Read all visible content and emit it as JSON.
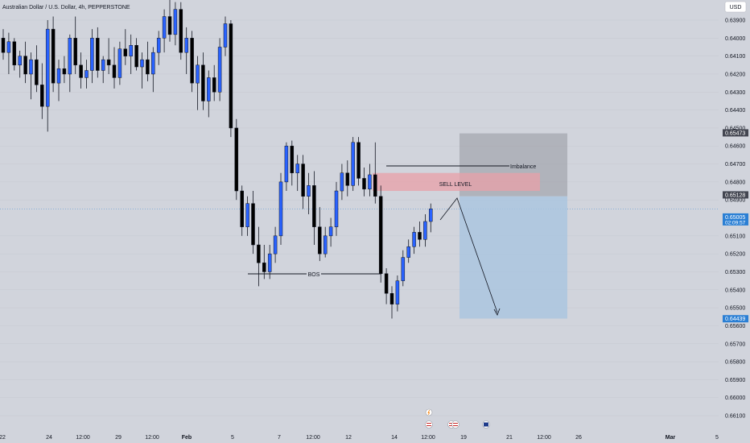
{
  "header": {
    "symbol": "Australian Dollar / U.S. Dollar, 4h, PEPPERSTONE",
    "currency_button": "USD"
  },
  "price_axis": {
    "ticks": [
      "0.66100",
      "0.66000",
      "0.65900",
      "0.65800",
      "0.65700",
      "0.65600",
      "0.65500",
      "0.65400",
      "0.65300",
      "0.65200",
      "0.65100",
      "0.64900",
      "0.64800",
      "0.64700",
      "0.64600",
      "0.64500",
      "0.64400",
      "0.64300",
      "0.64200",
      "0.64100",
      "0.64000",
      "0.63900"
    ],
    "tags": [
      {
        "value": "0.65473",
        "color": "#434651"
      },
      {
        "value": "0.65128",
        "color": "#434651"
      },
      {
        "value": "0.65005",
        "sub": "02:09:57",
        "color": "#2a7fd4"
      },
      {
        "value": "0.64439",
        "color": "#2a7fd4"
      }
    ]
  },
  "time_axis": [
    "22",
    "24",
    "12:00",
    "29",
    "12:00",
    "Feb",
    "5",
    "7",
    "12:00",
    "12",
    "14",
    "12:00",
    "19",
    "21",
    "12:00",
    "26",
    "Mar",
    "5"
  ],
  "annotations": {
    "imbalance": "Imbalance",
    "sell_level": "SELL LEVEL",
    "bos": "BOS"
  },
  "colors": {
    "background": "#d1d4dc",
    "candle_up": "#2962ff",
    "candle_down": "#000000",
    "sell_zone": "#e8a0a8",
    "stop_zone": "#9598a1",
    "target_zone": "#a9c4e0"
  },
  "chart_data": {
    "type": "candlestick",
    "title": "Australian Dollar / U.S. Dollar, 4h, PEPPERSTONE",
    "ylim": [
      0.6386,
      0.6625
    ],
    "y_ticks": [
      0.639,
      0.64,
      0.641,
      0.642,
      0.643,
      0.644,
      0.645,
      0.646,
      0.647,
      0.648,
      0.649,
      0.651,
      0.652,
      0.653,
      0.654,
      0.655,
      0.656,
      0.657,
      0.658,
      0.659,
      0.66,
      0.661
    ],
    "x_labels": [
      "22",
      "24",
      "12:00",
      "29",
      "12:00",
      "Feb",
      "5",
      "7",
      "12:00",
      "12",
      "14",
      "12:00",
      "19",
      "21",
      "12:00",
      "26",
      "Mar",
      "5"
    ],
    "ohlc": [
      [
        0.66,
        0.6605,
        0.6588,
        0.6592
      ],
      [
        0.6592,
        0.6603,
        0.658,
        0.6598
      ],
      [
        0.6598,
        0.66,
        0.6582,
        0.6585
      ],
      [
        0.6585,
        0.6593,
        0.6578,
        0.659
      ],
      [
        0.659,
        0.6598,
        0.6575,
        0.658
      ],
      [
        0.658,
        0.6592,
        0.6566,
        0.6588
      ],
      [
        0.6588,
        0.6596,
        0.657,
        0.6574
      ],
      [
        0.6574,
        0.6586,
        0.6555,
        0.6562
      ],
      [
        0.6562,
        0.661,
        0.6548,
        0.6605
      ],
      [
        0.6605,
        0.6612,
        0.657,
        0.6575
      ],
      [
        0.6575,
        0.6588,
        0.6565,
        0.6583
      ],
      [
        0.6583,
        0.659,
        0.6575,
        0.658
      ],
      [
        0.658,
        0.6602,
        0.657,
        0.66
      ],
      [
        0.66,
        0.6612,
        0.658,
        0.6585
      ],
      [
        0.6585,
        0.6592,
        0.6572,
        0.6578
      ],
      [
        0.6578,
        0.6588,
        0.6572,
        0.6582
      ],
      [
        0.6582,
        0.6605,
        0.6575,
        0.66
      ],
      [
        0.66,
        0.6606,
        0.6578,
        0.6582
      ],
      [
        0.6582,
        0.659,
        0.6575,
        0.6588
      ],
      [
        0.6588,
        0.66,
        0.658,
        0.6585
      ],
      [
        0.6585,
        0.6595,
        0.6572,
        0.6578
      ],
      [
        0.6578,
        0.6598,
        0.6574,
        0.6594
      ],
      [
        0.6594,
        0.6605,
        0.6585,
        0.659
      ],
      [
        0.659,
        0.6602,
        0.658,
        0.6596
      ],
      [
        0.6596,
        0.66,
        0.6582,
        0.6584
      ],
      [
        0.6584,
        0.6592,
        0.6572,
        0.6588
      ],
      [
        0.6588,
        0.6598,
        0.6576,
        0.658
      ],
      [
        0.658,
        0.6595,
        0.657,
        0.6592
      ],
      [
        0.6592,
        0.6604,
        0.6585,
        0.66
      ],
      [
        0.66,
        0.6616,
        0.6592,
        0.6612
      ],
      [
        0.6612,
        0.6626,
        0.6598,
        0.6602
      ],
      [
        0.6602,
        0.662,
        0.6596,
        0.6616
      ],
      [
        0.6616,
        0.662,
        0.6588,
        0.6592
      ],
      [
        0.6592,
        0.6606,
        0.658,
        0.66
      ],
      [
        0.66,
        0.6604,
        0.657,
        0.6575
      ],
      [
        0.6575,
        0.659,
        0.656,
        0.6585
      ],
      [
        0.6585,
        0.6592,
        0.656,
        0.6565
      ],
      [
        0.6565,
        0.6582,
        0.6556,
        0.6578
      ],
      [
        0.6578,
        0.6585,
        0.6565,
        0.657
      ],
      [
        0.657,
        0.66,
        0.6565,
        0.6595
      ],
      [
        0.6595,
        0.6612,
        0.659,
        0.6608
      ],
      [
        0.6608,
        0.661,
        0.6545,
        0.655
      ],
      [
        0.655,
        0.6555,
        0.651,
        0.6515
      ],
      [
        0.6515,
        0.6518,
        0.649,
        0.6495
      ],
      [
        0.6495,
        0.6512,
        0.649,
        0.6508
      ],
      [
        0.6508,
        0.6515,
        0.648,
        0.6485
      ],
      [
        0.6485,
        0.6495,
        0.6462,
        0.6475
      ],
      [
        0.6475,
        0.6485,
        0.6466,
        0.647
      ],
      [
        0.647,
        0.6485,
        0.6466,
        0.648
      ],
      [
        0.648,
        0.6495,
        0.6475,
        0.649
      ],
      [
        0.649,
        0.6525,
        0.6485,
        0.652
      ],
      [
        0.652,
        0.6542,
        0.6515,
        0.654
      ],
      [
        0.654,
        0.6543,
        0.6518,
        0.6525
      ],
      [
        0.6525,
        0.6535,
        0.6515,
        0.653
      ],
      [
        0.653,
        0.6535,
        0.6505,
        0.6512
      ],
      [
        0.6512,
        0.6525,
        0.6502,
        0.6518
      ],
      [
        0.6518,
        0.6526,
        0.6485,
        0.6495
      ],
      [
        0.6495,
        0.6506,
        0.6476,
        0.648
      ],
      [
        0.648,
        0.6495,
        0.6478,
        0.649
      ],
      [
        0.649,
        0.65,
        0.6484,
        0.6495
      ],
      [
        0.6495,
        0.652,
        0.649,
        0.6515
      ],
      [
        0.6515,
        0.653,
        0.651,
        0.6525
      ],
      [
        0.6525,
        0.6532,
        0.6512,
        0.6518
      ],
      [
        0.6518,
        0.6545,
        0.6515,
        0.6542
      ],
      [
        0.6542,
        0.6545,
        0.6518,
        0.6522
      ],
      [
        0.6522,
        0.6528,
        0.6512,
        0.6516
      ],
      [
        0.6516,
        0.653,
        0.6512,
        0.6524
      ],
      [
        0.6524,
        0.6542,
        0.6508,
        0.6512
      ],
      [
        0.6512,
        0.6518,
        0.6464,
        0.6469
      ],
      [
        0.6469,
        0.6472,
        0.6452,
        0.6458
      ],
      [
        0.6458,
        0.6462,
        0.6444,
        0.6452
      ],
      [
        0.6452,
        0.6468,
        0.6448,
        0.6465
      ],
      [
        0.6465,
        0.6482,
        0.6462,
        0.6478
      ],
      [
        0.6478,
        0.6488,
        0.6475,
        0.6484
      ],
      [
        0.6484,
        0.6495,
        0.648,
        0.6492
      ],
      [
        0.6492,
        0.6498,
        0.6484,
        0.6488
      ],
      [
        0.6488,
        0.6502,
        0.6484,
        0.6498
      ],
      [
        0.6498,
        0.6508,
        0.6492,
        0.6505
      ]
    ],
    "zones": {
      "stop": [
        0.6512,
        0.6547
      ],
      "sell": [
        0.6515,
        0.6525
      ],
      "target": [
        0.6444,
        0.6512
      ]
    }
  }
}
